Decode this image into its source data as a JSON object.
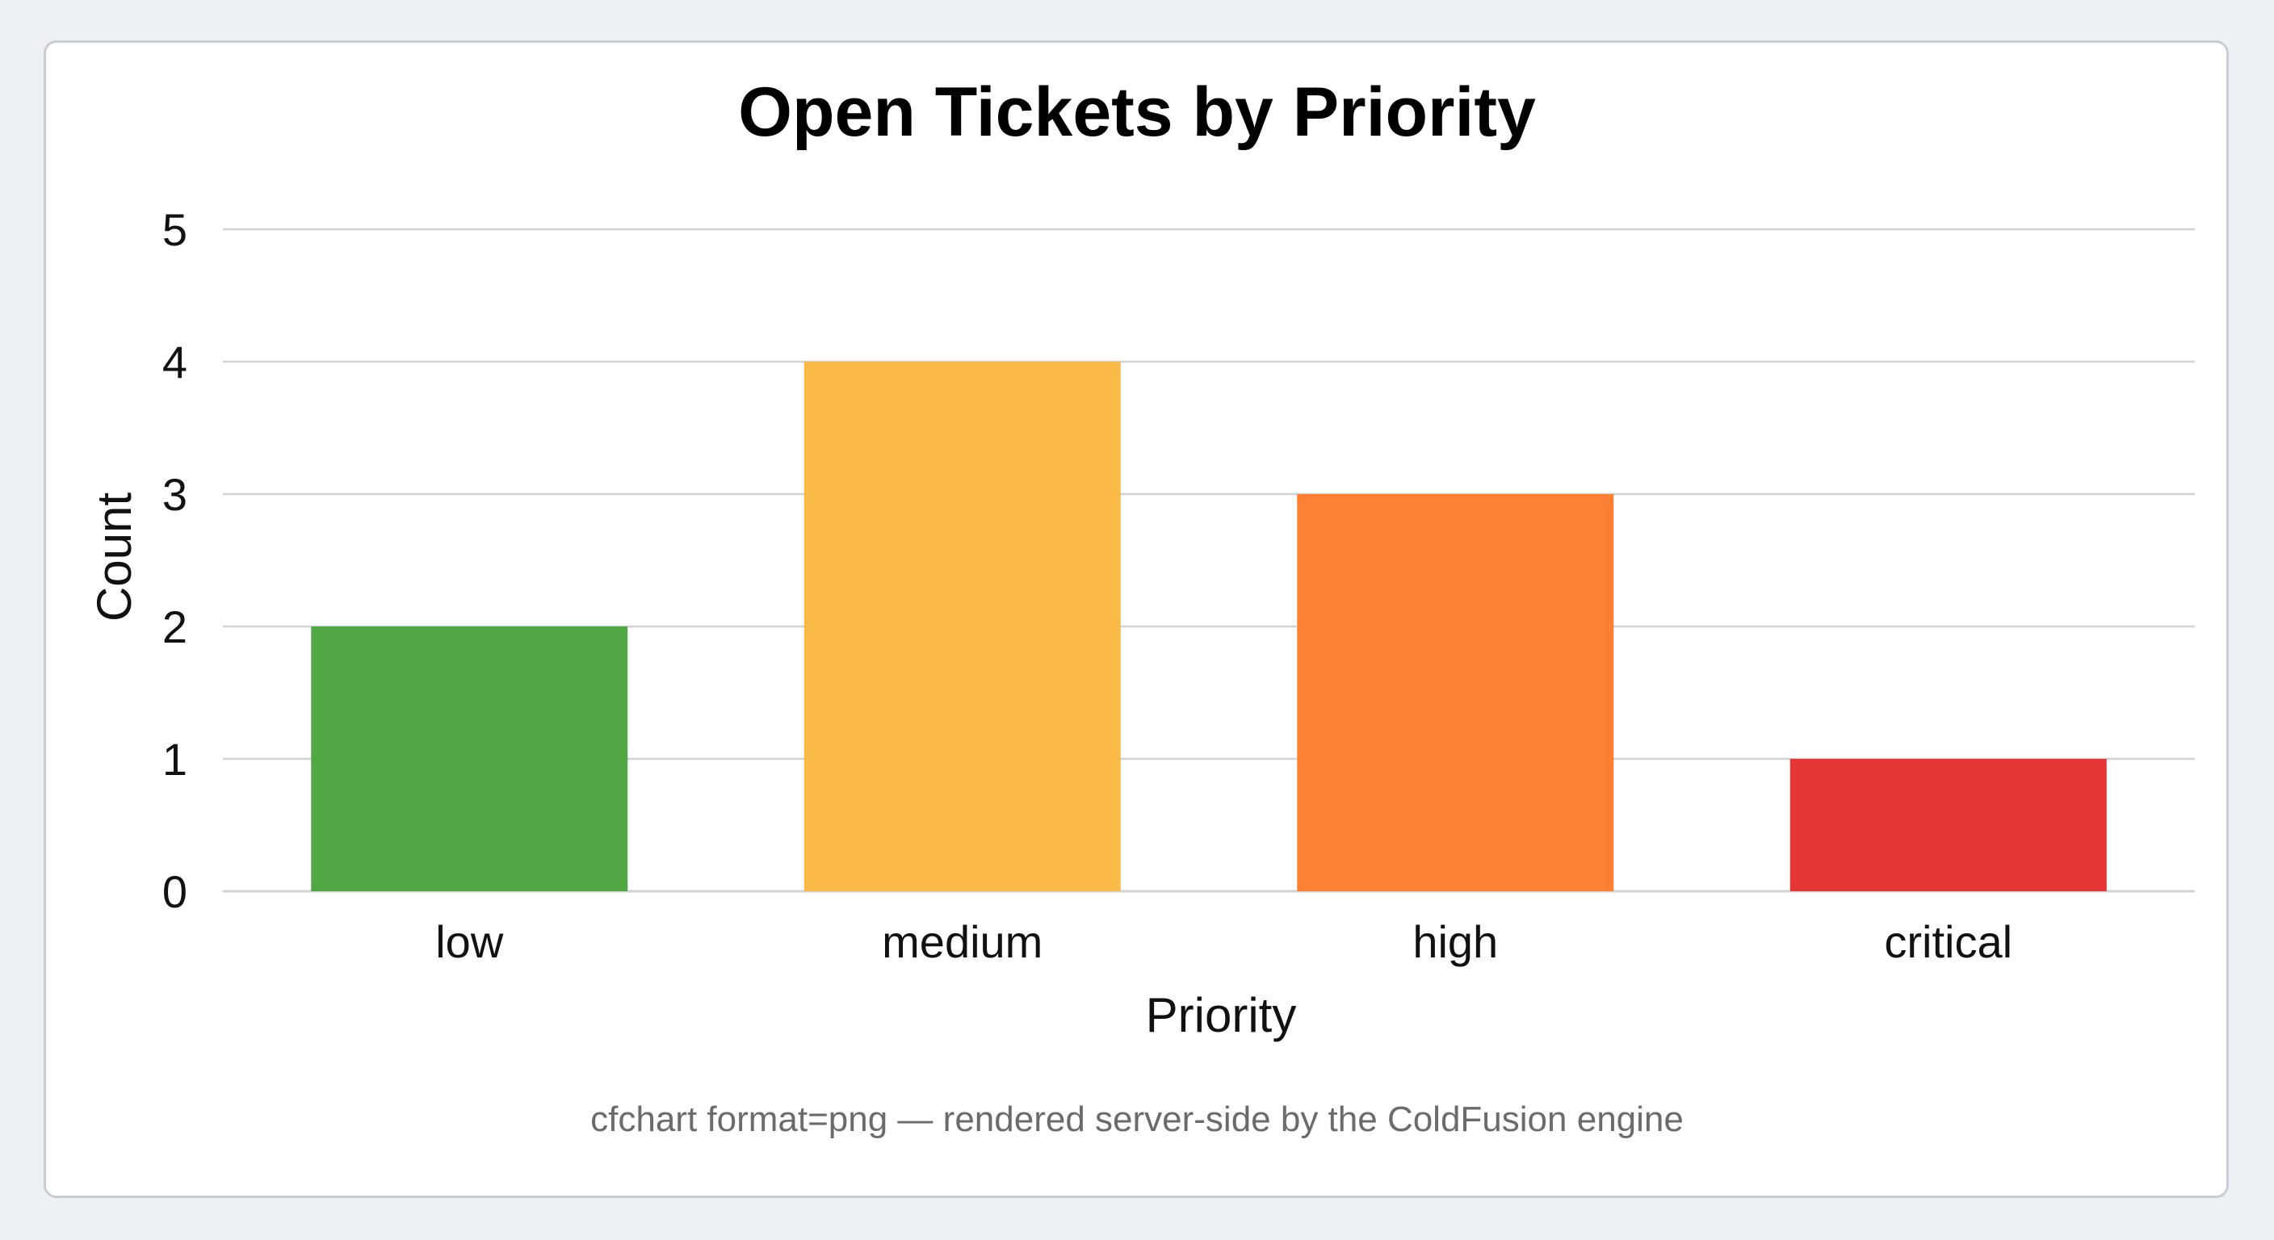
{
  "chart_data": {
    "type": "bar",
    "title": "Open Tickets by Priority",
    "xlabel": "Priority",
    "ylabel": "Count",
    "categories": [
      "low",
      "medium",
      "high",
      "critical"
    ],
    "values": [
      2,
      4,
      3,
      1
    ],
    "colors": [
      "#52a745",
      "#fbb945",
      "#fe8033",
      "#e53535"
    ],
    "ylim": [
      0,
      5
    ],
    "yticks": [
      0,
      1,
      2,
      3,
      4,
      5
    ],
    "grid": true,
    "legend": "none"
  },
  "caption": "cfchart format=png — rendered server-side by the ColdFusion engine",
  "colors": {
    "gridline": "#cfd2d6",
    "card_border": "#c9cdd3",
    "background": "#eef1f4"
  }
}
